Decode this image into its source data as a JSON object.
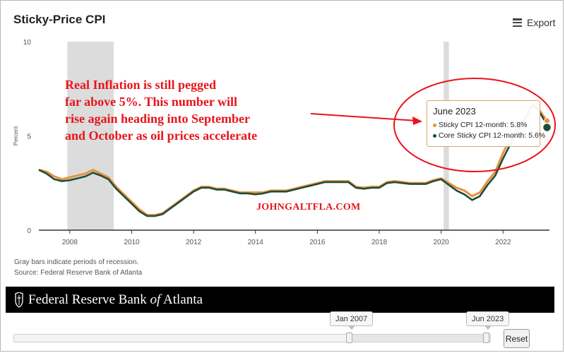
{
  "title": "Sticky-Price CPI",
  "export_label": "Export",
  "annotation": {
    "lines": [
      "Real Inflation is still pegged",
      "far above 5%. This number will",
      "rise again heading into September",
      "and October as oil prices accelerate"
    ],
    "watermark": "JOHNGALTFLA.COM",
    "color": "#e8141a"
  },
  "tooltip": {
    "title": "June 2023",
    "rows": [
      {
        "label": "Sticky CPI 12-month: 5.8%",
        "color": "#e8913a"
      },
      {
        "label": "Core Sticky CPI 12-month: 5.6%",
        "color": "#1e4d3a"
      }
    ]
  },
  "footnotes": {
    "line1": "Gray bars indicate periods of recession.",
    "line2": "Source: Federal Reserve Bank of Atlanta"
  },
  "banner": {
    "prefix": "Federal Reserve Bank ",
    "italic": "of",
    "suffix": " Atlanta"
  },
  "range_selector": {
    "start_label": "Jan 2007",
    "end_label": "Jun 2023",
    "start_fraction": 0.704,
    "end_fraction": 1.0,
    "reset_label": "Reset"
  },
  "chart_data": {
    "type": "line",
    "title": "Sticky-Price CPI",
    "xlabel": "",
    "ylabel": "Percent",
    "xlim": [
      2007.0,
      2023.5
    ],
    "ylim": [
      0,
      10
    ],
    "yticks": [
      0,
      5,
      10
    ],
    "xticks": [
      2008,
      2010,
      2012,
      2014,
      2016,
      2018,
      2020,
      2022
    ],
    "grid": false,
    "recessions": [
      [
        2007.92,
        2009.42
      ],
      [
        2020.08,
        2020.25
      ]
    ],
    "series": [
      {
        "name": "Sticky CPI 12-month",
        "color": "#e8913a",
        "points": [
          [
            2007.0,
            3.2
          ],
          [
            2007.25,
            3.1
          ],
          [
            2007.5,
            2.85
          ],
          [
            2007.75,
            2.7
          ],
          [
            2008.0,
            2.8
          ],
          [
            2008.25,
            2.9
          ],
          [
            2008.5,
            3.0
          ],
          [
            2008.75,
            3.2
          ],
          [
            2009.0,
            3.0
          ],
          [
            2009.25,
            2.8
          ],
          [
            2009.5,
            2.3
          ],
          [
            2009.75,
            1.9
          ],
          [
            2010.0,
            1.5
          ],
          [
            2010.25,
            1.1
          ],
          [
            2010.5,
            0.8
          ],
          [
            2010.75,
            0.8
          ],
          [
            2011.0,
            0.9
          ],
          [
            2011.25,
            1.2
          ],
          [
            2011.5,
            1.5
          ],
          [
            2011.75,
            1.8
          ],
          [
            2012.0,
            2.1
          ],
          [
            2012.25,
            2.3
          ],
          [
            2012.5,
            2.3
          ],
          [
            2012.75,
            2.2
          ],
          [
            2013.0,
            2.2
          ],
          [
            2013.25,
            2.1
          ],
          [
            2013.5,
            2.0
          ],
          [
            2013.75,
            2.0
          ],
          [
            2014.0,
            2.0
          ],
          [
            2014.25,
            2.0
          ],
          [
            2014.5,
            2.1
          ],
          [
            2014.75,
            2.1
          ],
          [
            2015.0,
            2.1
          ],
          [
            2015.25,
            2.2
          ],
          [
            2015.5,
            2.3
          ],
          [
            2015.75,
            2.4
          ],
          [
            2016.0,
            2.5
          ],
          [
            2016.25,
            2.6
          ],
          [
            2016.5,
            2.6
          ],
          [
            2016.75,
            2.6
          ],
          [
            2017.0,
            2.6
          ],
          [
            2017.25,
            2.3
          ],
          [
            2017.5,
            2.25
          ],
          [
            2017.75,
            2.3
          ],
          [
            2018.0,
            2.3
          ],
          [
            2018.25,
            2.55
          ],
          [
            2018.5,
            2.6
          ],
          [
            2018.75,
            2.55
          ],
          [
            2019.0,
            2.5
          ],
          [
            2019.25,
            2.5
          ],
          [
            2019.5,
            2.5
          ],
          [
            2019.75,
            2.65
          ],
          [
            2020.0,
            2.75
          ],
          [
            2020.25,
            2.5
          ],
          [
            2020.5,
            2.25
          ],
          [
            2020.75,
            2.1
          ],
          [
            2021.0,
            1.8
          ],
          [
            2021.25,
            2.0
          ],
          [
            2021.5,
            2.6
          ],
          [
            2021.75,
            3.1
          ],
          [
            2022.0,
            4.1
          ],
          [
            2022.25,
            4.9
          ],
          [
            2022.5,
            5.5
          ],
          [
            2022.75,
            6.1
          ],
          [
            2022.9,
            6.6
          ],
          [
            2023.0,
            6.7
          ],
          [
            2023.2,
            6.3
          ],
          [
            2023.42,
            5.8
          ]
        ]
      },
      {
        "name": "Core Sticky CPI 12-month",
        "color": "#1e4d3a",
        "points": [
          [
            2007.0,
            3.2
          ],
          [
            2007.25,
            3.0
          ],
          [
            2007.5,
            2.7
          ],
          [
            2007.75,
            2.6
          ],
          [
            2008.0,
            2.65
          ],
          [
            2008.25,
            2.75
          ],
          [
            2008.5,
            2.85
          ],
          [
            2008.75,
            3.05
          ],
          [
            2009.0,
            2.9
          ],
          [
            2009.25,
            2.7
          ],
          [
            2009.5,
            2.2
          ],
          [
            2009.75,
            1.8
          ],
          [
            2010.0,
            1.4
          ],
          [
            2010.25,
            1.0
          ],
          [
            2010.5,
            0.75
          ],
          [
            2010.75,
            0.75
          ],
          [
            2011.0,
            0.85
          ],
          [
            2011.25,
            1.15
          ],
          [
            2011.5,
            1.45
          ],
          [
            2011.75,
            1.75
          ],
          [
            2012.0,
            2.05
          ],
          [
            2012.25,
            2.25
          ],
          [
            2012.5,
            2.25
          ],
          [
            2012.75,
            2.15
          ],
          [
            2013.0,
            2.15
          ],
          [
            2013.25,
            2.05
          ],
          [
            2013.5,
            1.95
          ],
          [
            2013.75,
            1.95
          ],
          [
            2014.0,
            1.9
          ],
          [
            2014.25,
            1.95
          ],
          [
            2014.5,
            2.05
          ],
          [
            2014.75,
            2.05
          ],
          [
            2015.0,
            2.05
          ],
          [
            2015.25,
            2.15
          ],
          [
            2015.5,
            2.25
          ],
          [
            2015.75,
            2.35
          ],
          [
            2016.0,
            2.45
          ],
          [
            2016.25,
            2.55
          ],
          [
            2016.5,
            2.55
          ],
          [
            2016.75,
            2.55
          ],
          [
            2017.0,
            2.55
          ],
          [
            2017.25,
            2.25
          ],
          [
            2017.5,
            2.2
          ],
          [
            2017.75,
            2.25
          ],
          [
            2018.0,
            2.25
          ],
          [
            2018.25,
            2.5
          ],
          [
            2018.5,
            2.55
          ],
          [
            2018.75,
            2.5
          ],
          [
            2019.0,
            2.45
          ],
          [
            2019.25,
            2.45
          ],
          [
            2019.5,
            2.45
          ],
          [
            2019.75,
            2.6
          ],
          [
            2020.0,
            2.7
          ],
          [
            2020.25,
            2.4
          ],
          [
            2020.5,
            2.1
          ],
          [
            2020.75,
            1.9
          ],
          [
            2021.0,
            1.6
          ],
          [
            2021.25,
            1.8
          ],
          [
            2021.5,
            2.4
          ],
          [
            2021.75,
            2.9
          ],
          [
            2022.0,
            3.8
          ],
          [
            2022.25,
            4.6
          ],
          [
            2022.5,
            5.3
          ],
          [
            2022.75,
            6.0
          ],
          [
            2022.9,
            6.5
          ],
          [
            2023.0,
            6.6
          ],
          [
            2023.2,
            6.2
          ],
          [
            2023.42,
            5.6
          ]
        ]
      }
    ]
  }
}
